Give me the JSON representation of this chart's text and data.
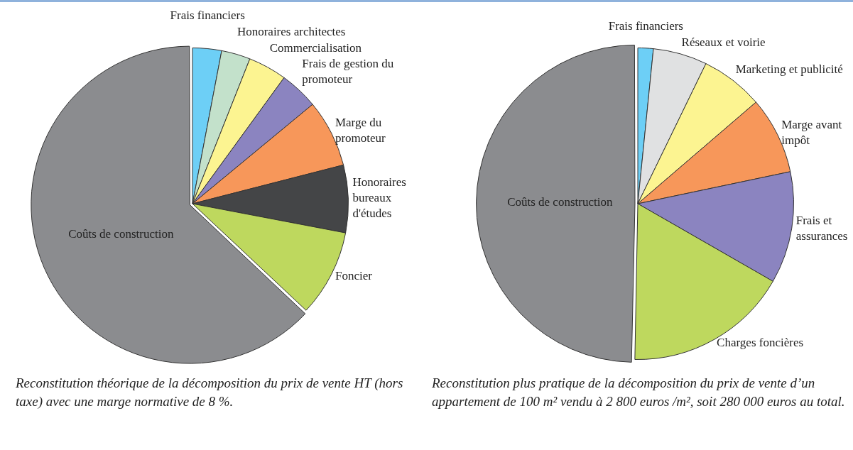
{
  "chart_data": [
    {
      "type": "pie",
      "categories": [
        "Frais financiers",
        "Honoraires architectes",
        "Commercialisation",
        "Frais de gestion du promoteur",
        "Marge du promoteur",
        "Honoraires bureaux d'études",
        "Foncier",
        "Coûts de construction"
      ],
      "values": [
        3,
        3,
        4,
        4,
        7,
        7,
        9,
        63
      ],
      "colors": [
        "#6dcff6",
        "#c3e1cb",
        "#fcf491",
        "#8b84c0",
        "#f7975a",
        "#444547",
        "#bed85e",
        "#8b8c8f"
      ],
      "legend": false,
      "annotations": [
        "Reconstitution théorique de la décomposition du prix de vente HT (hors taxe) avec une marge normative de 8 %."
      ]
    },
    {
      "type": "pie",
      "categories": [
        "Frais financiers",
        "Réseaux et voirie",
        "Marketing et publicité",
        "Marge avant impôt",
        "Frais et assurances",
        "Charges foncières",
        "Coûts de construction"
      ],
      "values": [
        1.6,
        5.6,
        6.5,
        8,
        11.6,
        17,
        49.7
      ],
      "colors": [
        "#6dcff6",
        "#e0e1e2",
        "#fcf491",
        "#f7975a",
        "#8b84c0",
        "#bed85e",
        "#8b8c8f"
      ],
      "legend": false,
      "annotations": [
        "Reconstitution plus pratique de la décomposition du prix de vente d’un appartement de 100 m² vendu à 2 800 euros /m², soit 280 000 euros au total."
      ]
    }
  ]
}
